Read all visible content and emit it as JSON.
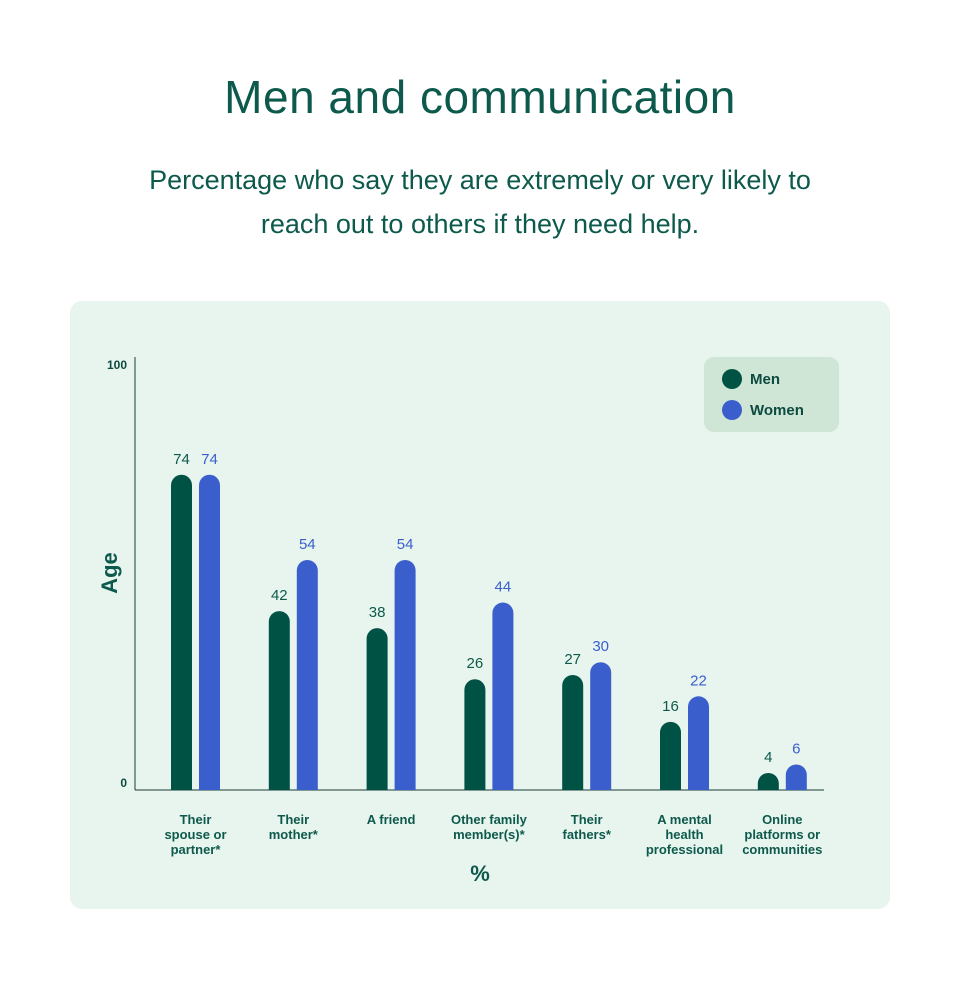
{
  "title": "Men and communication",
  "subtitle": "Percentage who say they are extremely or very likely to reach out to others if they need help.",
  "colors": {
    "men": "#005244",
    "women": "#3a5fcd",
    "text": "#0d5a4c",
    "panel": "#e8f4ee",
    "legend_bg": "#cfe6d6"
  },
  "legend": {
    "men": "Men",
    "women": "Women"
  },
  "chart_data": {
    "type": "bar",
    "title": "Men and communication",
    "subtitle": "Percentage who say they are extremely or very likely to reach out to others if they need help.",
    "xlabel": "%",
    "ylabel": "Age",
    "ylim": [
      0,
      100
    ],
    "yticks": [
      "0",
      "100"
    ],
    "categories": [
      [
        "Their",
        "spouse or",
        "partner*"
      ],
      [
        "Their",
        "mother*"
      ],
      [
        "A friend"
      ],
      [
        "Other family",
        "member(s)*"
      ],
      [
        "Their",
        "fathers*"
      ],
      [
        "A mental",
        "health",
        "professional"
      ],
      [
        "Online",
        "platforms or",
        "communities"
      ]
    ],
    "series": [
      {
        "name": "Men",
        "values": [
          74,
          42,
          38,
          26,
          27,
          16,
          4
        ]
      },
      {
        "name": "Women",
        "values": [
          74,
          54,
          54,
          44,
          30,
          22,
          6
        ]
      }
    ],
    "legend_position": "top-right",
    "grid": false
  }
}
